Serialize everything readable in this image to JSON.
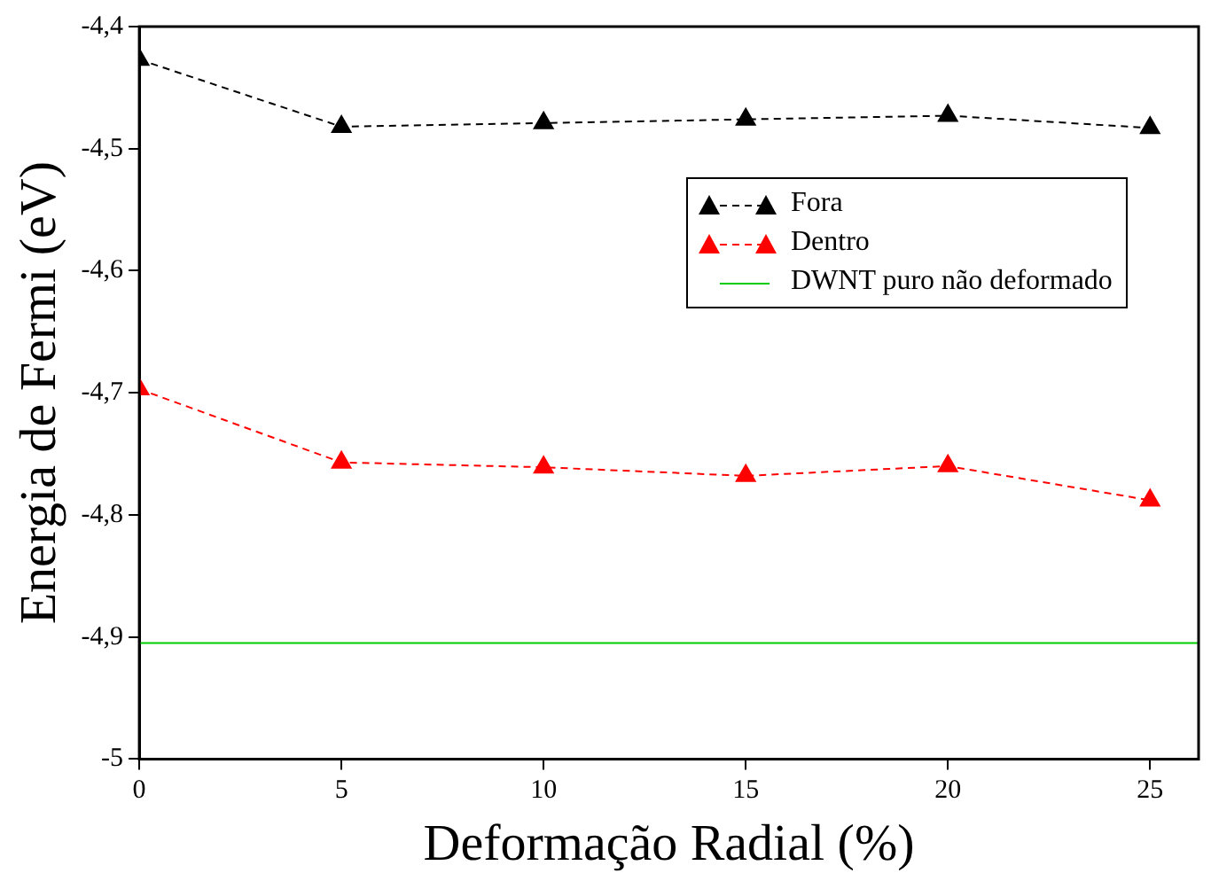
{
  "chart_data": {
    "type": "line",
    "xlabel": "Deformação Radial (%)",
    "ylabel": "Energia de Fermi (eV)",
    "xlim": [
      0,
      26.2
    ],
    "xticks": [
      0,
      5,
      10,
      15,
      20,
      25
    ],
    "ylim": [
      -5,
      -4.4
    ],
    "yticks": [
      {
        "value": -5,
        "label": "-5"
      },
      {
        "value": -4.9,
        "label": "-4,9"
      },
      {
        "value": -4.8,
        "label": "-4,8"
      },
      {
        "value": -4.7,
        "label": "-4,7"
      },
      {
        "value": -4.6,
        "label": "-4,6"
      },
      {
        "value": -4.5,
        "label": "-4,5"
      },
      {
        "value": -4.4,
        "label": "-4,4"
      }
    ],
    "grid": false,
    "legend": "top right",
    "series": [
      {
        "name": "Fora",
        "color": "#000000",
        "marker": "triangle",
        "line_style": "dashed",
        "x": [
          0,
          5,
          10,
          15,
          20,
          25
        ],
        "values": [
          -4.427,
          -4.482,
          -4.479,
          -4.476,
          -4.473,
          -4.483
        ]
      },
      {
        "name": "Dentro",
        "color": "#ff0000",
        "marker": "triangle",
        "line_style": "dashed",
        "x": [
          0,
          5,
          10,
          15,
          20,
          25
        ],
        "values": [
          -4.697,
          -4.757,
          -4.761,
          -4.768,
          -4.76,
          -4.788
        ]
      },
      {
        "name": "DWNT puro não deformado",
        "color": "#00cc00",
        "marker": "none",
        "line_style": "solid",
        "x": [
          0,
          26.2
        ],
        "values": [
          -4.905,
          -4.905
        ]
      }
    ]
  }
}
